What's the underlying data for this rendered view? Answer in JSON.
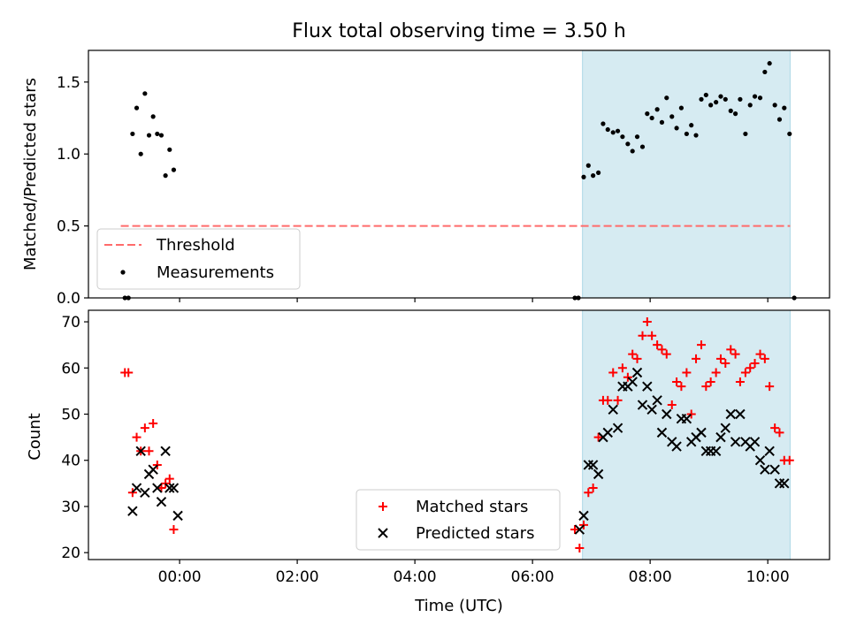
{
  "chart_data": [
    {
      "type": "scatter",
      "title": "Flux total observing time = 3.50 h",
      "xlabel": "",
      "ylabel": "Matched/Predicted stars",
      "x_axis": "time (UTC), values in hours relative to 00:00",
      "xlim": [
        -1.55,
        11.05
      ],
      "ylim": [
        0,
        1.72
      ],
      "yticks": [
        "0.0",
        "0.5",
        "1.0",
        "1.5"
      ],
      "grid": false,
      "legend_position": "lower-left",
      "highlight_span": {
        "x": [
          6.85,
          10.38
        ],
        "color": "#add8e6"
      },
      "threshold": {
        "name": "Threshold",
        "y": 0.5,
        "x": [
          -1.0,
          10.38
        ],
        "color": "#ff6b6b",
        "style": "dashed"
      },
      "series": [
        {
          "name": "Measurements",
          "marker": "dot",
          "color": "#000000",
          "x": [
            -0.93,
            -0.87,
            -0.8,
            -0.73,
            -0.66,
            -0.59,
            -0.52,
            -0.45,
            -0.38,
            -0.31,
            -0.24,
            -0.17,
            -0.1,
            -0.03,
            0.03,
            6.72,
            6.78,
            6.87,
            6.95,
            7.03,
            7.12,
            7.2,
            7.28,
            7.37,
            7.45,
            7.53,
            7.62,
            7.7,
            7.78,
            7.87,
            7.95,
            8.03,
            8.12,
            8.2,
            8.28,
            8.37,
            8.45,
            8.53,
            8.62,
            8.7,
            8.78,
            8.87,
            8.95,
            9.03,
            9.12,
            9.2,
            9.28,
            9.37,
            9.45,
            9.53,
            9.62,
            9.7,
            9.78,
            9.87,
            9.95,
            10.03,
            10.12,
            10.2,
            10.28,
            10.37,
            10.45
          ],
          "y": [
            0.0,
            0.0,
            1.14,
            1.32,
            1.0,
            1.42,
            1.13,
            1.26,
            1.14,
            1.13,
            0.85,
            1.03,
            0.89,
            null,
            null,
            0.0,
            0.0,
            0.84,
            0.92,
            0.85,
            0.87,
            1.21,
            1.17,
            1.15,
            1.16,
            1.12,
            1.07,
            1.02,
            1.12,
            1.05,
            1.28,
            1.25,
            1.31,
            1.22,
            1.39,
            1.26,
            1.18,
            1.32,
            1.14,
            1.2,
            1.13,
            1.38,
            1.41,
            1.34,
            1.36,
            1.4,
            1.38,
            1.3,
            1.28,
            1.38,
            1.14,
            1.34,
            1.4,
            1.39,
            1.57,
            1.63,
            1.34,
            1.24,
            1.32,
            1.14,
            0.0
          ]
        }
      ]
    },
    {
      "type": "scatter",
      "title": "",
      "xlabel": "Time (UTC)",
      "ylabel": "Count",
      "x_axis": "time (UTC), values in hours relative to 00:00",
      "xlim": [
        -1.55,
        11.05
      ],
      "ylim": [
        18.5,
        72.5
      ],
      "xticks": [
        "00:00",
        "02:00",
        "04:00",
        "06:00",
        "08:00",
        "10:00"
      ],
      "yticks": [
        "20",
        "30",
        "40",
        "50",
        "60",
        "70"
      ],
      "grid": false,
      "legend_position": "lower-center",
      "highlight_span": {
        "x": [
          6.85,
          10.38
        ],
        "color": "#add8e6"
      },
      "series": [
        {
          "name": "Matched stars",
          "marker": "plus",
          "color": "#ff0000",
          "x": [
            -0.93,
            -0.87,
            -0.8,
            -0.73,
            -0.66,
            -0.59,
            -0.52,
            -0.45,
            -0.38,
            -0.31,
            -0.24,
            -0.17,
            -0.1,
            -0.03,
            0.03,
            6.72,
            6.8,
            6.87,
            6.95,
            7.03,
            7.12,
            7.2,
            7.28,
            7.37,
            7.45,
            7.53,
            7.62,
            7.7,
            7.78,
            7.87,
            7.95,
            8.03,
            8.12,
            8.2,
            8.28,
            8.37,
            8.45,
            8.53,
            8.62,
            8.7,
            8.78,
            8.87,
            8.95,
            9.03,
            9.12,
            9.2,
            9.28,
            9.37,
            9.45,
            9.53,
            9.62,
            9.7,
            9.78,
            9.87,
            9.95,
            10.03,
            10.12,
            10.2,
            10.28,
            10.37,
            10.45
          ],
          "y": [
            59,
            59,
            33,
            45,
            42,
            47,
            42,
            48,
            39,
            34,
            35,
            36,
            25,
            null,
            null,
            25,
            21,
            26,
            33,
            34,
            45,
            53,
            53,
            59,
            53,
            60,
            58,
            63,
            62,
            67,
            70,
            67,
            65,
            64,
            63,
            52,
            57,
            56,
            59,
            50,
            62,
            65,
            56,
            57,
            59,
            62,
            61,
            64,
            63,
            57,
            59,
            60,
            61,
            63,
            62,
            56,
            47,
            46,
            40,
            40,
            null
          ]
        },
        {
          "name": "Predicted stars",
          "marker": "x",
          "color": "#000000",
          "x": [
            -0.8,
            -0.73,
            -0.66,
            -0.59,
            -0.52,
            -0.45,
            -0.38,
            -0.31,
            -0.24,
            -0.17,
            -0.1,
            -0.03,
            0.03,
            6.8,
            6.87,
            6.95,
            7.03,
            7.12,
            7.2,
            7.28,
            7.37,
            7.45,
            7.53,
            7.62,
            7.7,
            7.78,
            7.87,
            7.95,
            8.03,
            8.12,
            8.2,
            8.28,
            8.37,
            8.45,
            8.53,
            8.62,
            8.7,
            8.78,
            8.87,
            8.95,
            9.03,
            9.12,
            9.2,
            9.28,
            9.37,
            9.45,
            9.53,
            9.62,
            9.7,
            9.78,
            9.87,
            9.95,
            10.03,
            10.12,
            10.2,
            10.28,
            10.37
          ],
          "y": [
            29,
            34,
            42,
            33,
            37,
            38,
            34,
            31,
            42,
            34,
            34,
            28,
            null,
            25,
            28,
            39,
            39,
            37,
            45,
            46,
            51,
            47,
            56,
            56,
            57,
            59,
            52,
            56,
            51,
            53,
            46,
            50,
            44,
            43,
            49,
            49,
            44,
            45,
            46,
            42,
            42,
            42,
            45,
            47,
            50,
            44,
            50,
            44,
            43,
            44,
            40,
            38,
            42,
            38,
            35,
            35,
            null
          ]
        }
      ]
    }
  ]
}
